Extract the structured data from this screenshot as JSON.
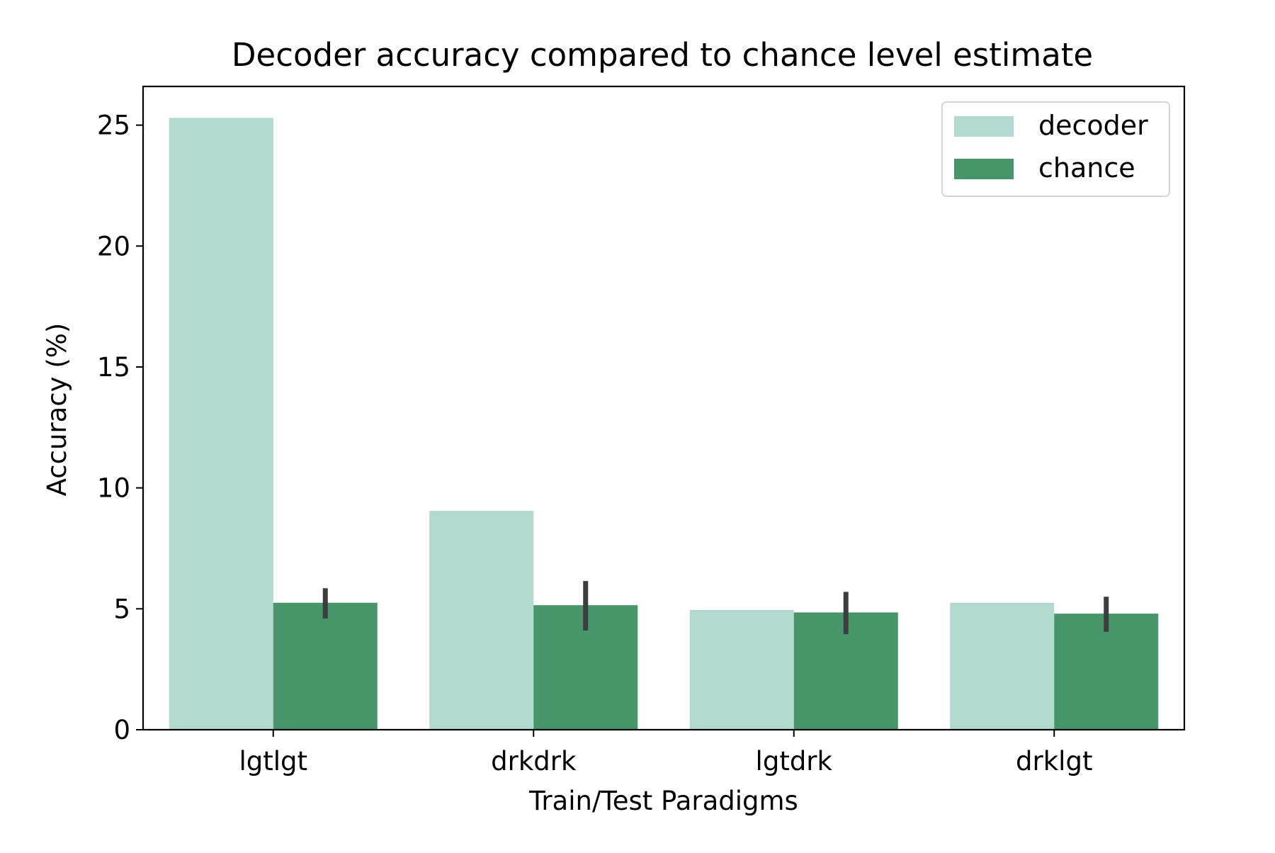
{
  "chart_data": {
    "type": "bar",
    "title": "Decoder accuracy compared to chance level estimate",
    "xlabel": "Train/Test Paradigms",
    "ylabel": "Accuracy (%)",
    "ylim": [
      0,
      26.6
    ],
    "yticks": [
      0,
      5,
      10,
      15,
      20,
      25
    ],
    "categories": [
      "lgtlgt",
      "drkdrk",
      "lgtdrk",
      "drklgt"
    ],
    "series": [
      {
        "name": "decoder",
        "color": "#b1d9cf",
        "values": [
          25.3,
          9.05,
          4.95,
          5.25
        ]
      },
      {
        "name": "chance",
        "color": "#46966a",
        "values": [
          5.25,
          5.15,
          4.85,
          4.8
        ],
        "error_bars": [
          [
            4.6,
            5.85
          ],
          [
            4.1,
            6.15
          ],
          [
            3.95,
            5.7
          ],
          [
            4.05,
            5.5
          ]
        ]
      }
    ],
    "error_bar_color": "#3d3d3d",
    "grid": false,
    "legend_position": "top-right"
  }
}
